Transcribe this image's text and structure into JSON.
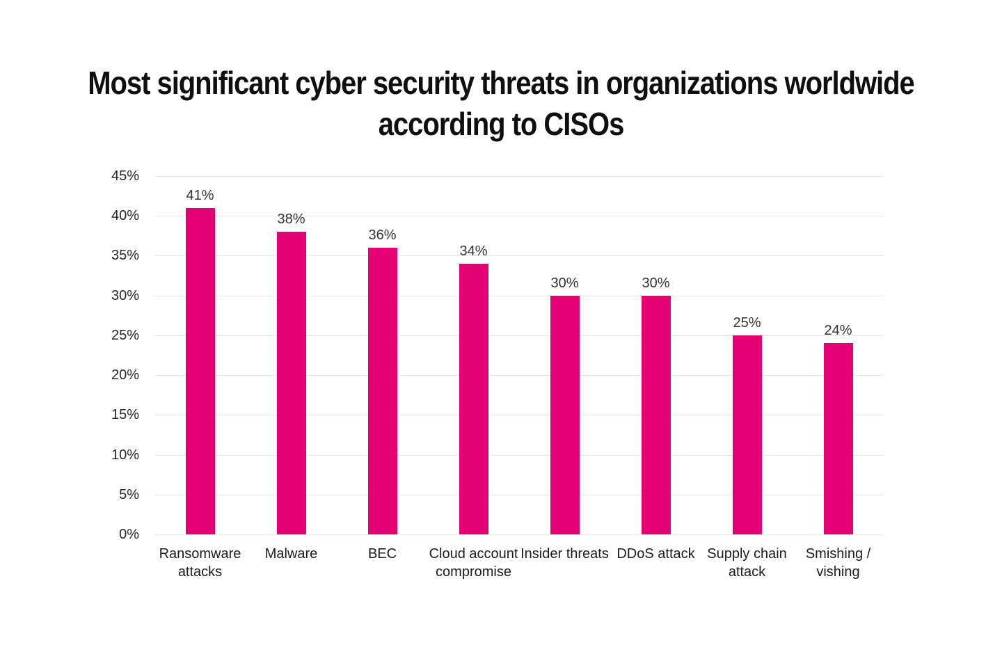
{
  "title": "Most significant cyber security threats in organizations worldwide according to CISOs",
  "chart_data": {
    "type": "bar",
    "title": "Most significant cyber security threats in organizations worldwide according to CISOs",
    "categories": [
      "Ransomware attacks",
      "Malware",
      "BEC",
      "Cloud account compromise",
      "Insider threats",
      "DDoS attack",
      "Supply chain attack",
      "Smishing / vishing"
    ],
    "values": [
      41,
      38,
      36,
      34,
      30,
      30,
      25,
      24
    ],
    "data_labels": [
      "41%",
      "38%",
      "36%",
      "34%",
      "30%",
      "30%",
      "25%",
      "24%"
    ],
    "xlabel": "",
    "ylabel": "",
    "ylim": [
      0,
      45
    ],
    "y_step": 5,
    "y_tick_labels": [
      "45%",
      "40%",
      "35%",
      "30%",
      "25%",
      "20%",
      "15%",
      "10%",
      "5%",
      "0%"
    ],
    "grid": "horizontal",
    "legend": "none",
    "bar_color": "#E20074",
    "grid_color": "#E8E8E8",
    "text_color": "#1C1C1C",
    "background_color": "#FFFFFF"
  }
}
